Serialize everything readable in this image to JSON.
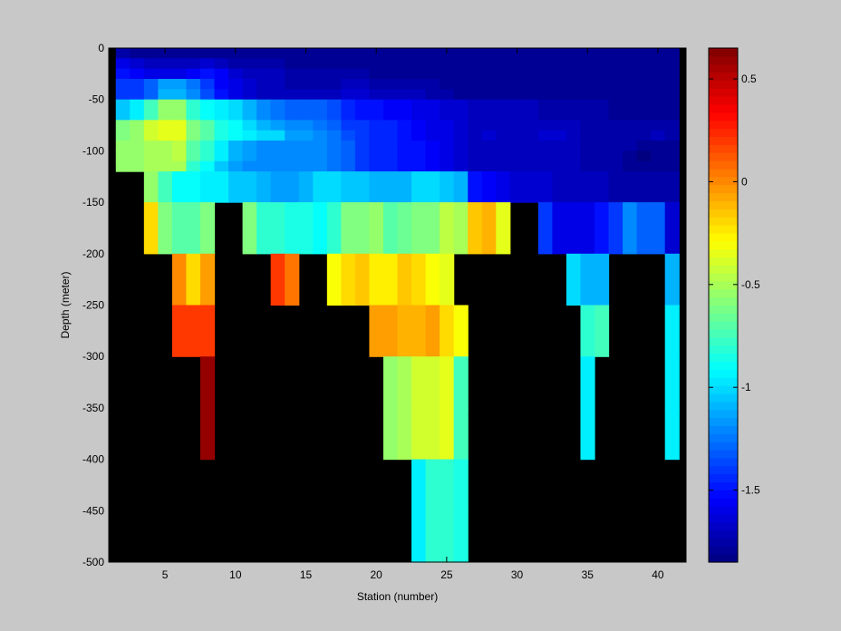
{
  "chart_data": {
    "type": "heatmap",
    "title": "",
    "xlabel": "Station (number)",
    "ylabel": "Depth (meter)",
    "xlim": [
      1,
      42
    ],
    "ylim": [
      -500,
      0
    ],
    "xticks": [
      5,
      10,
      15,
      20,
      25,
      30,
      35,
      40
    ],
    "yticks": [
      0,
      -50,
      -100,
      -150,
      -200,
      -250,
      -300,
      -350,
      -400,
      -450,
      -500
    ],
    "colorbar": {
      "colormap": "jet",
      "clim": [
        -1.85,
        0.65
      ],
      "ticks": [
        0.5,
        0,
        -0.5,
        -1,
        -1.5
      ]
    },
    "nodata_color": "#000000",
    "background_color": "#c8c8c8",
    "stations": [
      2,
      3,
      4,
      5,
      6,
      7,
      8,
      9,
      10,
      11,
      12,
      13,
      14,
      15,
      16,
      17,
      18,
      19,
      20,
      21,
      22,
      23,
      24,
      25,
      26,
      27,
      28,
      29,
      30,
      31,
      32,
      33,
      34,
      35,
      36,
      37,
      38,
      39,
      40,
      41
    ],
    "depth_bins": [
      [
        0,
        -10
      ],
      [
        -10,
        -20
      ],
      [
        -20,
        -30
      ],
      [
        -30,
        -40
      ],
      [
        -40,
        -50
      ],
      [
        -50,
        -60
      ],
      [
        -60,
        -70
      ],
      [
        -70,
        -80
      ],
      [
        -80,
        -90
      ],
      [
        -90,
        -100
      ],
      [
        -100,
        -110
      ],
      [
        -110,
        -120
      ],
      [
        -120,
        -130
      ],
      [
        -130,
        -140
      ],
      [
        -140,
        -150
      ],
      [
        -150,
        -200
      ],
      [
        -200,
        -250
      ],
      [
        -250,
        -300
      ],
      [
        -300,
        -350
      ],
      [
        -350,
        -400
      ],
      [
        -400,
        -450
      ],
      [
        -450,
        -500
      ]
    ],
    "values": [
      [
        -1.75,
        -1.8,
        -1.8,
        -1.8,
        -1.8,
        -1.8,
        -1.8,
        -1.8,
        -1.8,
        -1.8,
        -1.8,
        -1.8,
        -1.8,
        -1.8,
        -1.8,
        -1.8,
        -1.8,
        -1.8,
        -1.8,
        -1.8,
        -1.8,
        -1.8,
        -1.8,
        -1.8,
        -1.8,
        -1.8,
        -1.8,
        -1.8,
        -1.8,
        -1.8,
        -1.8,
        -1.8,
        -1.8,
        -1.8,
        -1.8,
        -1.8,
        -1.8,
        -1.8,
        -1.8,
        -1.8
      ],
      [
        -1.6,
        -1.65,
        -1.7,
        -1.7,
        -1.7,
        -1.7,
        -1.65,
        -1.7,
        -1.75,
        -1.75,
        -1.75,
        -1.75,
        -1.8,
        -1.8,
        -1.8,
        -1.8,
        -1.8,
        -1.8,
        -1.8,
        -1.8,
        -1.8,
        -1.8,
        -1.8,
        -1.8,
        -1.8,
        -1.8,
        -1.8,
        -1.8,
        -1.8,
        -1.8,
        -1.8,
        -1.8,
        -1.8,
        -1.8,
        -1.8,
        -1.8,
        -1.8,
        -1.8,
        -1.8,
        -1.8
      ],
      [
        -1.5,
        -1.55,
        -1.6,
        -1.6,
        -1.6,
        -1.55,
        -1.5,
        -1.55,
        -1.65,
        -1.7,
        -1.7,
        -1.7,
        -1.75,
        -1.75,
        -1.75,
        -1.75,
        -1.75,
        -1.75,
        -1.8,
        -1.8,
        -1.8,
        -1.8,
        -1.8,
        -1.8,
        -1.8,
        -1.8,
        -1.8,
        -1.8,
        -1.8,
        -1.8,
        -1.8,
        -1.8,
        -1.8,
        -1.8,
        -1.8,
        -1.8,
        -1.8,
        -1.8,
        -1.8,
        -1.8
      ],
      [
        -1.4,
        -1.4,
        -1.3,
        -1.15,
        -1.15,
        -1.25,
        -1.4,
        -1.55,
        -1.6,
        -1.65,
        -1.7,
        -1.7,
        -1.75,
        -1.75,
        -1.75,
        -1.75,
        -1.7,
        -1.7,
        -1.75,
        -1.75,
        -1.75,
        -1.75,
        -1.75,
        -1.8,
        -1.8,
        -1.8,
        -1.8,
        -1.8,
        -1.8,
        -1.8,
        -1.8,
        -1.8,
        -1.8,
        -1.8,
        -1.8,
        -1.8,
        -1.8,
        -1.8,
        -1.8,
        -1.8
      ],
      [
        -1.4,
        -1.4,
        -1.3,
        -1.1,
        -1.1,
        -1.2,
        -1.35,
        -1.5,
        -1.6,
        -1.65,
        -1.7,
        -1.7,
        -1.7,
        -1.7,
        -1.7,
        -1.7,
        -1.65,
        -1.65,
        -1.7,
        -1.7,
        -1.7,
        -1.7,
        -1.75,
        -1.75,
        -1.8,
        -1.8,
        -1.8,
        -1.8,
        -1.8,
        -1.8,
        -1.8,
        -1.8,
        -1.8,
        -1.8,
        -1.8,
        -1.8,
        -1.8,
        -1.8,
        -1.8,
        -1.8
      ],
      [
        -1.05,
        -0.95,
        -0.75,
        -0.55,
        -0.55,
        -0.8,
        -0.9,
        -0.95,
        -1.0,
        -1.1,
        -1.2,
        -1.25,
        -1.3,
        -1.3,
        -1.3,
        -1.35,
        -1.45,
        -1.5,
        -1.5,
        -1.55,
        -1.55,
        -1.6,
        -1.6,
        -1.65,
        -1.65,
        -1.7,
        -1.7,
        -1.7,
        -1.7,
        -1.7,
        -1.75,
        -1.75,
        -1.75,
        -1.75,
        -1.75,
        -1.8,
        -1.8,
        -1.8,
        -1.8,
        -1.8
      ],
      [
        -1.05,
        -0.95,
        -0.75,
        -0.55,
        -0.55,
        -0.8,
        -0.9,
        -0.95,
        -1.0,
        -1.1,
        -1.2,
        -1.25,
        -1.3,
        -1.3,
        -1.3,
        -1.35,
        -1.45,
        -1.5,
        -1.5,
        -1.55,
        -1.55,
        -1.6,
        -1.6,
        -1.65,
        -1.65,
        -1.7,
        -1.7,
        -1.7,
        -1.7,
        -1.7,
        -1.75,
        -1.75,
        -1.75,
        -1.75,
        -1.75,
        -1.8,
        -1.8,
        -1.8,
        -1.8,
        -1.8
      ],
      [
        -0.6,
        -0.55,
        -0.4,
        -0.35,
        -0.35,
        -0.6,
        -0.7,
        -0.85,
        -0.9,
        -1.0,
        -1.1,
        -1.15,
        -1.2,
        -1.2,
        -1.25,
        -1.3,
        -1.4,
        -1.4,
        -1.45,
        -1.45,
        -1.5,
        -1.55,
        -1.6,
        -1.6,
        -1.65,
        -1.7,
        -1.7,
        -1.7,
        -1.7,
        -1.7,
        -1.7,
        -1.7,
        -1.7,
        -1.75,
        -1.75,
        -1.75,
        -1.75,
        -1.75,
        -1.75,
        -1.75
      ],
      [
        -0.6,
        -0.55,
        -0.4,
        -0.35,
        -0.35,
        -0.6,
        -0.7,
        -0.85,
        -0.9,
        -0.95,
        -1.0,
        -1.0,
        -1.15,
        -1.15,
        -1.2,
        -1.25,
        -1.35,
        -1.4,
        -1.45,
        -1.45,
        -1.5,
        -1.55,
        -1.6,
        -1.6,
        -1.65,
        -1.7,
        -1.65,
        -1.7,
        -1.7,
        -1.7,
        -1.65,
        -1.65,
        -1.7,
        -1.75,
        -1.75,
        -1.75,
        -1.75,
        -1.75,
        -1.7,
        -1.75
      ],
      [
        -0.55,
        -0.55,
        -0.5,
        -0.5,
        -0.45,
        -0.7,
        -0.8,
        -0.95,
        -1.1,
        -1.15,
        -1.2,
        -1.2,
        -1.2,
        -1.2,
        -1.2,
        -1.25,
        -1.3,
        -1.4,
        -1.45,
        -1.45,
        -1.5,
        -1.5,
        -1.55,
        -1.6,
        -1.65,
        -1.7,
        -1.7,
        -1.7,
        -1.7,
        -1.7,
        -1.7,
        -1.7,
        -1.7,
        -1.75,
        -1.75,
        -1.75,
        -1.75,
        -1.8,
        -1.8,
        -1.8
      ],
      [
        -0.55,
        -0.55,
        -0.5,
        -0.5,
        -0.45,
        -0.7,
        -0.8,
        -0.95,
        -1.1,
        -1.15,
        -1.2,
        -1.2,
        -1.2,
        -1.2,
        -1.2,
        -1.25,
        -1.3,
        -1.4,
        -1.45,
        -1.45,
        -1.5,
        -1.5,
        -1.55,
        -1.6,
        -1.65,
        -1.7,
        -1.7,
        -1.7,
        -1.7,
        -1.7,
        -1.7,
        -1.7,
        -1.7,
        -1.75,
        -1.75,
        -1.75,
        -1.8,
        -1.85,
        -1.8,
        -1.8
      ],
      [
        -0.55,
        -0.55,
        -0.5,
        -0.5,
        -0.5,
        -0.8,
        -0.9,
        -1.05,
        -1.15,
        -1.2,
        -1.2,
        -1.2,
        -1.2,
        -1.2,
        -1.2,
        -1.25,
        -1.3,
        -1.4,
        -1.45,
        -1.45,
        -1.5,
        -1.5,
        -1.55,
        -1.6,
        -1.65,
        -1.7,
        -1.7,
        -1.7,
        -1.7,
        -1.7,
        -1.7,
        -1.7,
        -1.7,
        -1.75,
        -1.75,
        -1.75,
        -1.8,
        -1.8,
        -1.8,
        -1.8
      ],
      [
        null,
        null,
        -0.55,
        -0.75,
        -0.9,
        -0.9,
        -0.95,
        -0.95,
        -1.05,
        -1.05,
        -1.1,
        -1.15,
        -1.15,
        -1.1,
        -1.0,
        -1.0,
        -1.05,
        -1.05,
        -1.1,
        -1.1,
        -1.1,
        -1.0,
        -1.0,
        -1.05,
        -1.1,
        -1.5,
        -1.55,
        -1.6,
        -1.65,
        -1.65,
        -1.65,
        -1.7,
        -1.7,
        -1.7,
        -1.7,
        -1.75,
        -1.75,
        -1.75,
        -1.75,
        -1.75
      ],
      [
        null,
        null,
        -0.55,
        -0.75,
        -0.9,
        -0.9,
        -0.95,
        -0.95,
        -1.05,
        -1.05,
        -1.1,
        -1.15,
        -1.15,
        -1.1,
        -1.0,
        -1.0,
        -1.05,
        -1.05,
        -1.1,
        -1.1,
        -1.1,
        -1.0,
        -1.0,
        -1.05,
        -1.1,
        -1.5,
        -1.55,
        -1.6,
        -1.65,
        -1.65,
        -1.65,
        -1.7,
        -1.7,
        -1.7,
        -1.7,
        -1.75,
        -1.75,
        -1.75,
        -1.75,
        -1.75
      ],
      [
        null,
        null,
        -0.55,
        -0.75,
        -0.9,
        -0.9,
        -0.95,
        -0.95,
        -1.05,
        -1.05,
        -1.1,
        -1.15,
        -1.15,
        -1.1,
        -1.0,
        -1.0,
        -1.05,
        -1.05,
        -1.1,
        -1.1,
        -1.1,
        -1.0,
        -1.0,
        -1.05,
        -1.1,
        -1.5,
        -1.55,
        -1.6,
        -1.65,
        -1.65,
        -1.65,
        -1.7,
        -1.7,
        -1.7,
        -1.7,
        -1.75,
        -1.75,
        -1.75,
        -1.75,
        -1.75
      ],
      [
        null,
        null,
        -0.2,
        -0.6,
        -0.7,
        -0.7,
        -0.6,
        null,
        null,
        -0.6,
        -0.8,
        -0.8,
        -0.85,
        -0.85,
        -0.9,
        -0.8,
        -0.6,
        -0.6,
        -0.55,
        -0.7,
        -0.65,
        -0.6,
        -0.6,
        -0.45,
        -0.5,
        -0.15,
        -0.1,
        -0.35,
        null,
        null,
        -1.4,
        -1.6,
        -1.6,
        -1.6,
        -1.5,
        -1.4,
        -1.2,
        -1.3,
        -1.3,
        -1.65
      ],
      [
        null,
        null,
        null,
        null,
        0.0,
        -0.2,
        -0.05,
        null,
        null,
        null,
        null,
        0.2,
        0.05,
        null,
        null,
        -0.3,
        -0.2,
        -0.15,
        -0.25,
        -0.25,
        -0.15,
        -0.2,
        -0.3,
        -0.35,
        null,
        null,
        null,
        null,
        null,
        null,
        null,
        null,
        -1.0,
        -1.1,
        -1.1,
        null,
        null,
        null,
        null,
        -1.1
      ],
      [
        null,
        null,
        null,
        null,
        0.2,
        0.2,
        0.2,
        null,
        null,
        null,
        null,
        null,
        null,
        null,
        null,
        null,
        null,
        null,
        -0.05,
        -0.05,
        -0.1,
        -0.1,
        -0.05,
        -0.2,
        -0.3,
        null,
        null,
        null,
        null,
        null,
        null,
        null,
        null,
        -0.8,
        -0.75,
        null,
        null,
        null,
        null,
        -0.95
      ],
      [
        null,
        null,
        null,
        null,
        null,
        null,
        0.6,
        null,
        null,
        null,
        null,
        null,
        null,
        null,
        null,
        null,
        null,
        null,
        null,
        -0.55,
        -0.5,
        -0.4,
        -0.4,
        -0.35,
        -0.75,
        null,
        null,
        null,
        null,
        null,
        null,
        null,
        null,
        -0.95,
        null,
        null,
        null,
        null,
        null,
        -0.95
      ],
      [
        null,
        null,
        null,
        null,
        null,
        null,
        0.6,
        null,
        null,
        null,
        null,
        null,
        null,
        null,
        null,
        null,
        null,
        null,
        null,
        -0.55,
        -0.5,
        -0.4,
        -0.4,
        -0.35,
        -0.75,
        null,
        null,
        null,
        null,
        null,
        null,
        null,
        null,
        -0.95,
        null,
        null,
        null,
        null,
        null,
        -0.95
      ],
      [
        null,
        null,
        null,
        null,
        null,
        null,
        null,
        null,
        null,
        null,
        null,
        null,
        null,
        null,
        null,
        null,
        null,
        null,
        null,
        null,
        null,
        -0.95,
        -0.8,
        -0.8,
        -0.85,
        null,
        null,
        null,
        null,
        null,
        null,
        null,
        null,
        null,
        null,
        null,
        null,
        null,
        null,
        null
      ],
      [
        null,
        null,
        null,
        null,
        null,
        null,
        null,
        null,
        null,
        null,
        null,
        null,
        null,
        null,
        null,
        null,
        null,
        null,
        null,
        null,
        null,
        -0.95,
        -0.8,
        -0.8,
        -0.85,
        null,
        null,
        null,
        null,
        null,
        null,
        null,
        null,
        null,
        null,
        null,
        null,
        null,
        null,
        null
      ]
    ]
  }
}
